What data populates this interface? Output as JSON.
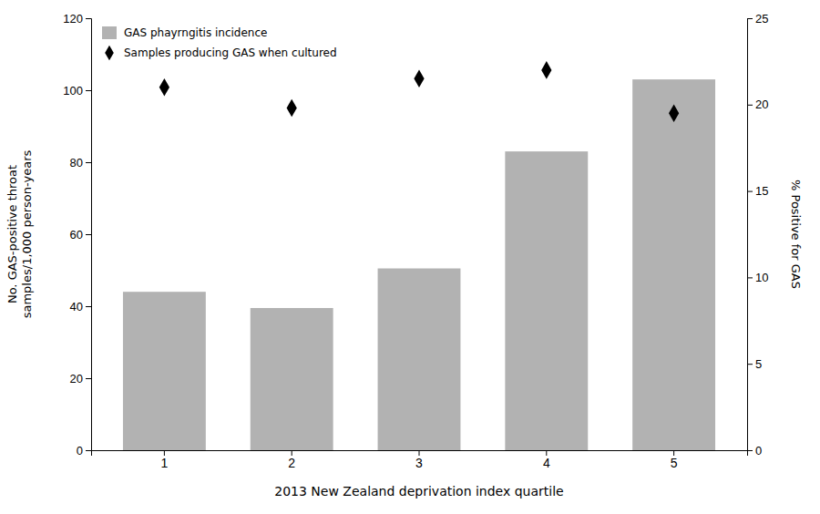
{
  "chart_data": {
    "type": "bar",
    "categories": [
      "1",
      "2",
      "3",
      "4",
      "5"
    ],
    "series": [
      {
        "name": "GAS phayrngitis incidence",
        "type": "bar",
        "color": "#b2b2b2",
        "values": [
          44,
          39.5,
          50.5,
          83,
          103
        ]
      },
      {
        "name": "Samples producing GAS when cultured",
        "type": "scatter",
        "marker": "diamond",
        "color": "#000000",
        "axis": "y2",
        "values": [
          21.0,
          19.8,
          21.5,
          22.0,
          19.5
        ]
      }
    ],
    "xlabel": "2013 New Zealand deprivation index quartile",
    "ylabel": "No. GAS-positive throat\nsamples/1,000 person-years",
    "y2label": "% Positive for GAS",
    "ylim": [
      0,
      120
    ],
    "yticks": [
      0,
      20,
      40,
      60,
      80,
      100,
      120
    ],
    "y2lim": [
      0,
      25
    ],
    "y2ticks": [
      0,
      5,
      10,
      15,
      20,
      25
    ],
    "grid": false,
    "legend": "upper left"
  }
}
